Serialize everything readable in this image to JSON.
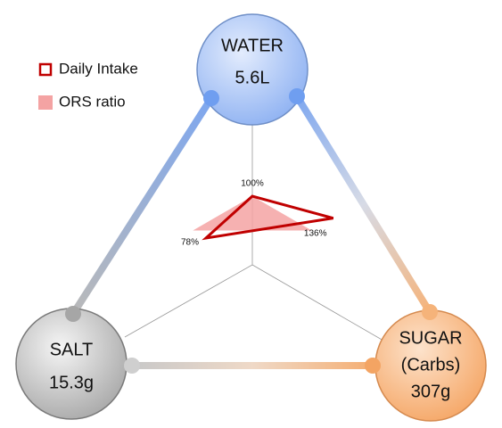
{
  "chart_data": {
    "type": "radar",
    "nodes": [
      {
        "label": "WATER",
        "amount": "5.6L"
      },
      {
        "label": "SALT",
        "amount": "15.3g"
      },
      {
        "label": "SUGAR",
        "sublabel": "(Carbs)",
        "amount": "307g"
      }
    ],
    "rlim": [
      0,
      100
    ],
    "series": [
      {
        "name": "Daily Intake",
        "color": "#c00000",
        "values": [
          100,
          78,
          136
        ],
        "value_labels": [
          "100%",
          "78%",
          "136%"
        ]
      },
      {
        "name": "ORS ratio",
        "color": "#f4a3a3",
        "values": [
          100,
          100,
          100
        ]
      }
    ]
  }
}
